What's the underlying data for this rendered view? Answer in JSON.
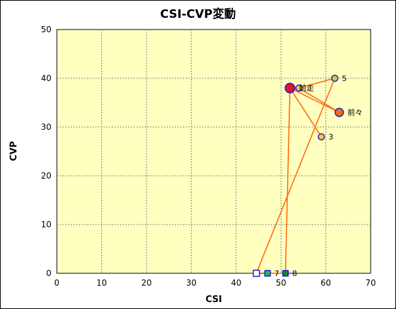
{
  "chart_data": {
    "type": "scatter",
    "title": "CSI-CVP変動",
    "xlabel": "CSI",
    "ylabel": "CVP",
    "xlim": [
      0,
      70
    ],
    "ylim": [
      0,
      50
    ],
    "xticks": [
      0,
      10,
      20,
      30,
      40,
      50,
      60,
      70
    ],
    "yticks": [
      0,
      10,
      20,
      30,
      40,
      50
    ],
    "grid": true,
    "plot_background": "#ffffc0",
    "line_color": "#ff6a10",
    "trajectory": [
      {
        "x": 44.5,
        "y": 0
      },
      {
        "x": 62,
        "y": 40
      },
      {
        "x": 54,
        "y": 38
      },
      {
        "x": 63,
        "y": 33
      },
      {
        "x": 52,
        "y": 38
      },
      {
        "x": 59,
        "y": 28
      },
      {
        "x": 52,
        "y": 38
      },
      {
        "x": 51,
        "y": 0
      },
      {
        "x": 47,
        "y": 0
      }
    ],
    "points": [
      {
        "x": 44.5,
        "y": 0,
        "label": "",
        "marker": "square",
        "fill": "#ffffff",
        "stroke": "#1f1fd0",
        "size": 9
      },
      {
        "x": 47,
        "y": 0,
        "label": "7",
        "marker": "square",
        "fill": "#22c040",
        "stroke": "#1f1fd0",
        "size": 8
      },
      {
        "x": 51,
        "y": 0,
        "label": "8",
        "marker": "square",
        "fill": "#118822",
        "stroke": "#1f1fd0",
        "size": 8
      },
      {
        "x": 59,
        "y": 28,
        "label": "3",
        "marker": "circle",
        "fill": "#ffc83c",
        "stroke": "#1f1fd0",
        "size": 9
      },
      {
        "x": 62,
        "y": 40,
        "label": "5",
        "marker": "circle",
        "fill": "#b8d84a",
        "stroke": "#1f1fd0",
        "size": 9
      },
      {
        "x": 54,
        "y": 38,
        "label": "",
        "marker": "circle",
        "fill": "#ffc83c",
        "stroke": "#1f1fd0",
        "size": 9
      },
      {
        "x": 63,
        "y": 33,
        "label": "前々",
        "marker": "circle",
        "fill": "#ff6a10",
        "stroke": "#1f1fd0",
        "size": 12
      },
      {
        "x": 52,
        "y": 38,
        "label": "前走",
        "marker": "circle",
        "fill": "#dd1133",
        "stroke": "#1f1fd0",
        "size": 14
      }
    ]
  }
}
